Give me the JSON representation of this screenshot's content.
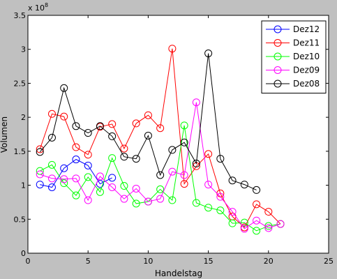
{
  "figure": {
    "background": "#c0c0c0",
    "axes_background": "#ffffff"
  },
  "chart_data": {
    "type": "line",
    "title": "",
    "xlabel": "Handelstag",
    "ylabel": "Volumen",
    "exponent_label": "x 10",
    "exponent_power": "8",
    "xlim": [
      0,
      25
    ],
    "ylim": [
      0,
      3.5
    ],
    "xticks": [
      0,
      5,
      10,
      15,
      20,
      25
    ],
    "yticks": [
      0,
      0.5,
      1,
      1.5,
      2,
      2.5,
      3,
      3.5
    ],
    "xtick_labels": [
      "0",
      "5",
      "10",
      "15",
      "20",
      "25"
    ],
    "ytick_labels": [
      "0",
      "0.5",
      "1",
      "1.5",
      "2",
      "2.5",
      "3",
      "3.5"
    ],
    "grid": false,
    "legend_position": "top-right",
    "marker": "open-circle",
    "series": [
      {
        "name": "Dez12",
        "color": "#0000ff",
        "x": [
          1,
          2,
          3,
          4,
          5,
          6,
          7
        ],
        "y": [
          1.01,
          0.97,
          1.25,
          1.38,
          1.29,
          1.02,
          1.11
        ]
      },
      {
        "name": "Dez11",
        "color": "#ff0000",
        "x": [
          1,
          2,
          3,
          4,
          5,
          6,
          7,
          8,
          9,
          10,
          11,
          12,
          13,
          14,
          15,
          16,
          17,
          18,
          19,
          20,
          21
        ],
        "y": [
          1.53,
          2.05,
          2.01,
          1.56,
          1.45,
          1.86,
          1.9,
          1.54,
          1.91,
          2.03,
          1.84,
          3.01,
          1.02,
          1.28,
          1.46,
          0.88,
          0.54,
          0.38,
          0.72,
          0.61,
          0.43
        ]
      },
      {
        "name": "Dez10",
        "color": "#00ff00",
        "x": [
          1,
          2,
          3,
          4,
          5,
          6,
          7,
          8,
          9,
          10,
          11,
          12,
          13,
          14,
          15,
          16,
          17,
          18,
          19,
          20,
          21
        ],
        "y": [
          1.21,
          1.3,
          1.03,
          0.85,
          1.12,
          0.9,
          1.4,
          0.99,
          0.73,
          0.76,
          0.94,
          0.78,
          1.88,
          0.74,
          0.67,
          0.63,
          0.44,
          0.45,
          0.33,
          0.4,
          0.43
        ]
      },
      {
        "name": "Dez09",
        "color": "#ff00ff",
        "x": [
          1,
          2,
          3,
          4,
          5,
          6,
          7,
          8,
          9,
          10,
          11,
          12,
          13,
          14,
          15,
          16,
          17,
          18,
          19,
          20,
          21
        ],
        "y": [
          1.16,
          1.1,
          1.09,
          1.1,
          0.78,
          1.13,
          0.97,
          0.8,
          0.95,
          0.76,
          0.8,
          1.2,
          1.15,
          2.22,
          1.01,
          0.83,
          0.61,
          0.36,
          0.48,
          0.37,
          0.43
        ]
      },
      {
        "name": "Dez08",
        "color": "#000000",
        "x": [
          1,
          2,
          3,
          4,
          5,
          6,
          7,
          8,
          9,
          10,
          11,
          12,
          13,
          14,
          15,
          16,
          17,
          18,
          19
        ],
        "y": [
          1.49,
          1.7,
          2.43,
          1.87,
          1.77,
          1.87,
          1.72,
          1.42,
          1.39,
          1.73,
          1.15,
          1.52,
          1.63,
          1.32,
          2.94,
          1.39,
          1.07,
          1.01,
          0.93
        ]
      }
    ]
  }
}
